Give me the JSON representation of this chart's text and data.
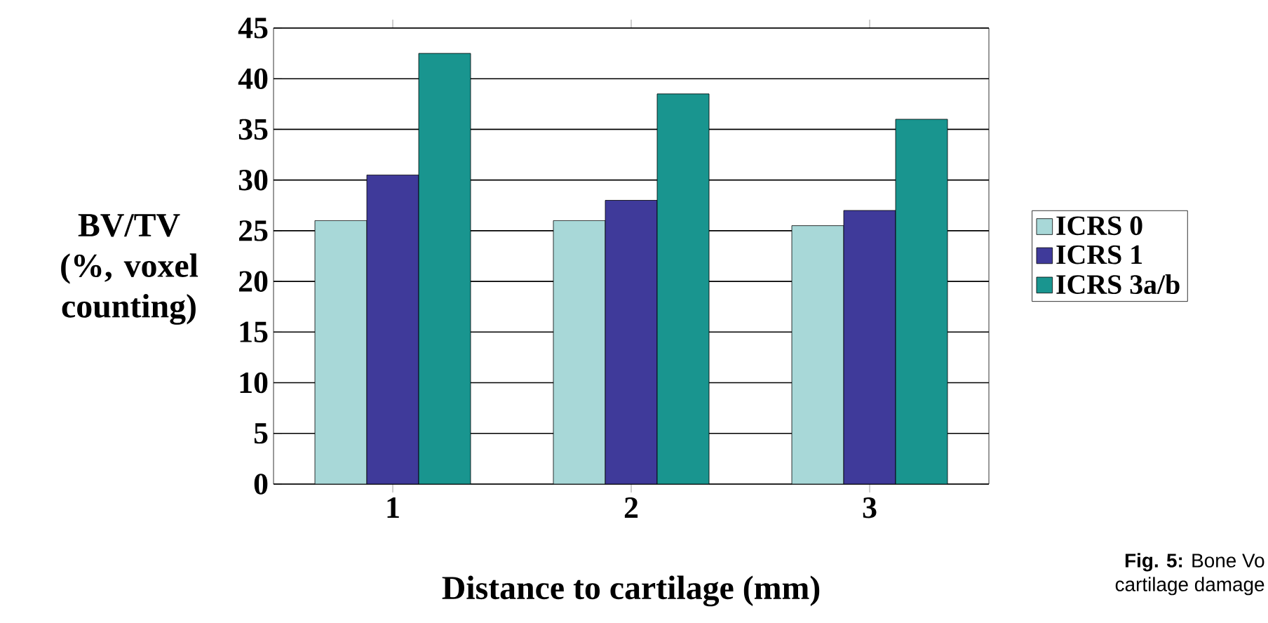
{
  "chart_data": {
    "type": "bar",
    "xlabel": "Distance to cartilage (mm)",
    "ylabel": "BV/TV (%, voxel counting)",
    "categories": [
      "1",
      "2",
      "3"
    ],
    "series": [
      {
        "name": "ICRS 0",
        "color": "#a8d8d8",
        "values": [
          26,
          26,
          25.5
        ]
      },
      {
        "name": "ICRS 1",
        "color": "#3f3a9a",
        "values": [
          30.5,
          28,
          27
        ]
      },
      {
        "name": "ICRS 3a/b",
        "color": "#19958f",
        "values": [
          42.5,
          38.5,
          36
        ]
      }
    ],
    "ylim": [
      0,
      45
    ],
    "yticks": [
      0,
      5,
      10,
      15,
      20,
      25,
      30,
      35,
      40,
      45
    ],
    "grid": "y",
    "legend": "right",
    "annotations": [
      "**Fig. 5:** Bone Vo",
      "cartilage damage"
    ]
  }
}
